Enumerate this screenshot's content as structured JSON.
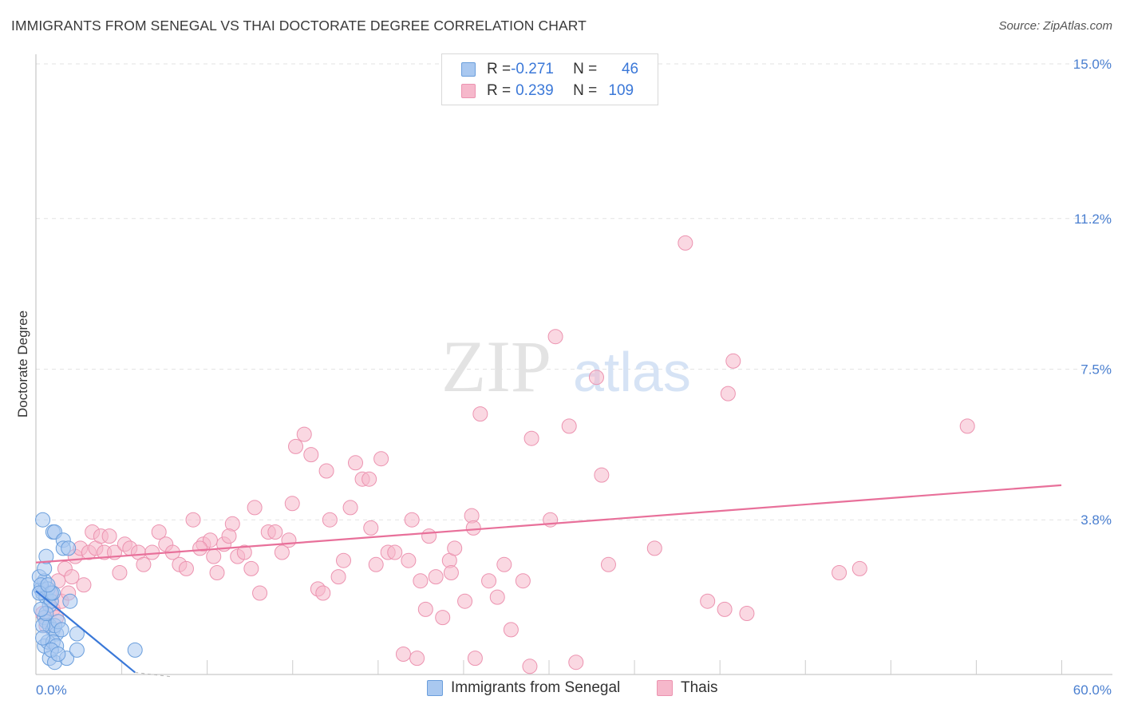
{
  "title": "IMMIGRANTS FROM SENEGAL VS THAI DOCTORATE DEGREE CORRELATION CHART",
  "source": "Source: ZipAtlas.com",
  "watermark": {
    "zip": "ZIP",
    "atlas": "atlas"
  },
  "legend": {
    "rows": [
      {
        "r_label": "R = ",
        "r_value": "-0.271",
        "n_label": "N = ",
        "n_value": "46"
      },
      {
        "r_label": "R = ",
        "r_value": "0.239",
        "n_label": "N = ",
        "n_value": "109"
      }
    ]
  },
  "bottom_legend": {
    "senegal": "Immigrants from Senegal",
    "thais": "Thais"
  },
  "colors": {
    "senegal_fill": "#a9c8f0",
    "senegal_stroke": "#6a9edc",
    "senegal_line": "#3a78d8",
    "thai_fill": "#f6b8cb",
    "thai_stroke": "#ec93b0",
    "thai_line": "#e8709a",
    "tick_text": "#4a7fd0",
    "grid": "#e3e3e3"
  },
  "chart_data": {
    "type": "scatter",
    "title": "IMMIGRANTS FROM SENEGAL VS THAI DOCTORATE DEGREE CORRELATION CHART",
    "xlabel": "",
    "ylabel": "Doctorate Degree",
    "xlim": [
      0,
      60
    ],
    "ylim": [
      0,
      15
    ],
    "x_tick_labels": [
      {
        "value": 0,
        "label": "0.0%"
      },
      {
        "value": 60,
        "label": "60.0%"
      }
    ],
    "y_tick_labels": [
      {
        "value": 3.8,
        "label": "3.8%"
      },
      {
        "value": 7.5,
        "label": "7.5%"
      },
      {
        "value": 11.2,
        "label": "11.2%"
      },
      {
        "value": 15.0,
        "label": "15.0%"
      }
    ],
    "series": [
      {
        "name": "Immigrants from Senegal",
        "r": -0.271,
        "n": 46,
        "trend": {
          "x": [
            0.0,
            5.8
          ],
          "y": [
            2.05,
            0.05
          ]
        },
        "trend_ext": {
          "x": [
            5.8,
            8.0
          ],
          "y": [
            0.05,
            -0.8
          ]
        },
        "points": [
          [
            0.3,
            2.1
          ],
          [
            0.4,
            2.0
          ],
          [
            0.5,
            2.3
          ],
          [
            0.6,
            1.9
          ],
          [
            0.7,
            2.1
          ],
          [
            0.8,
            1.7
          ],
          [
            0.9,
            1.8
          ],
          [
            1.0,
            2.0
          ],
          [
            0.2,
            2.4
          ],
          [
            0.3,
            2.2
          ],
          [
            0.5,
            2.6
          ],
          [
            0.6,
            2.9
          ],
          [
            0.4,
            3.8
          ],
          [
            1.0,
            3.5
          ],
          [
            1.1,
            3.5
          ],
          [
            1.6,
            3.3
          ],
          [
            1.6,
            3.1
          ],
          [
            1.9,
            3.1
          ],
          [
            0.5,
            1.4
          ],
          [
            0.6,
            1.3
          ],
          [
            0.8,
            1.2
          ],
          [
            1.0,
            1.1
          ],
          [
            1.2,
            1.0
          ],
          [
            1.1,
            1.2
          ],
          [
            0.5,
            0.7
          ],
          [
            0.7,
            0.8
          ],
          [
            1.0,
            0.8
          ],
          [
            1.2,
            0.7
          ],
          [
            0.8,
            0.4
          ],
          [
            1.1,
            0.3
          ],
          [
            1.8,
            0.4
          ],
          [
            0.9,
            0.6
          ],
          [
            2.4,
            1.0
          ],
          [
            2.0,
            1.8
          ],
          [
            2.4,
            0.6
          ],
          [
            5.8,
            0.6
          ],
          [
            0.4,
            1.2
          ],
          [
            0.6,
            1.5
          ],
          [
            1.3,
            1.3
          ],
          [
            0.9,
            2.0
          ],
          [
            0.2,
            2.0
          ],
          [
            0.3,
            1.6
          ],
          [
            0.7,
            2.2
          ],
          [
            1.5,
            1.1
          ],
          [
            0.4,
            0.9
          ],
          [
            1.3,
            0.5
          ]
        ]
      },
      {
        "name": "Thais",
        "r": 0.239,
        "n": 109,
        "trend": {
          "x": [
            0,
            60
          ],
          "y": [
            2.75,
            4.65
          ]
        },
        "points": [
          [
            0.4,
            1.5
          ],
          [
            0.6,
            1.2
          ],
          [
            0.8,
            2.0
          ],
          [
            1.0,
            1.6
          ],
          [
            1.2,
            1.4
          ],
          [
            1.3,
            2.3
          ],
          [
            1.5,
            1.8
          ],
          [
            1.7,
            2.6
          ],
          [
            1.9,
            2.0
          ],
          [
            2.1,
            2.4
          ],
          [
            2.3,
            2.9
          ],
          [
            2.6,
            3.1
          ],
          [
            2.8,
            2.2
          ],
          [
            3.1,
            3.0
          ],
          [
            3.3,
            3.5
          ],
          [
            3.5,
            3.1
          ],
          [
            3.8,
            3.4
          ],
          [
            4.0,
            3.0
          ],
          [
            4.3,
            3.4
          ],
          [
            4.6,
            3.0
          ],
          [
            4.9,
            2.5
          ],
          [
            5.2,
            3.2
          ],
          [
            5.5,
            3.1
          ],
          [
            6.0,
            3.0
          ],
          [
            6.3,
            2.7
          ],
          [
            6.8,
            3.0
          ],
          [
            7.2,
            3.5
          ],
          [
            7.6,
            3.2
          ],
          [
            8.0,
            3.0
          ],
          [
            8.4,
            2.7
          ],
          [
            8.8,
            2.6
          ],
          [
            9.2,
            3.8
          ],
          [
            9.8,
            3.2
          ],
          [
            10.2,
            3.3
          ],
          [
            10.6,
            2.5
          ],
          [
            11.0,
            3.2
          ],
          [
            11.5,
            3.7
          ],
          [
            11.8,
            2.9
          ],
          [
            12.2,
            3.0
          ],
          [
            12.6,
            2.6
          ],
          [
            12.8,
            4.1
          ],
          [
            13.1,
            2.0
          ],
          [
            13.6,
            3.5
          ],
          [
            14.0,
            3.5
          ],
          [
            14.4,
            3.0
          ],
          [
            14.8,
            3.3
          ],
          [
            15.0,
            4.2
          ],
          [
            15.2,
            5.6
          ],
          [
            15.7,
            5.9
          ],
          [
            16.1,
            5.4
          ],
          [
            16.5,
            2.1
          ],
          [
            16.8,
            2.0
          ],
          [
            17.0,
            5.0
          ],
          [
            17.2,
            3.8
          ],
          [
            17.7,
            2.4
          ],
          [
            18.0,
            2.8
          ],
          [
            18.4,
            4.1
          ],
          [
            18.7,
            5.2
          ],
          [
            19.1,
            4.8
          ],
          [
            19.5,
            4.8
          ],
          [
            19.9,
            2.7
          ],
          [
            20.2,
            5.3
          ],
          [
            20.6,
            3.0
          ],
          [
            21.0,
            3.0
          ],
          [
            21.8,
            2.8
          ],
          [
            22.0,
            3.8
          ],
          [
            22.5,
            2.3
          ],
          [
            22.8,
            1.6
          ],
          [
            23.0,
            3.4
          ],
          [
            23.4,
            2.4
          ],
          [
            23.8,
            1.4
          ],
          [
            24.2,
            2.8
          ],
          [
            24.5,
            3.1
          ],
          [
            25.1,
            1.8
          ],
          [
            25.5,
            3.9
          ],
          [
            25.7,
            0.4
          ],
          [
            26.0,
            6.4
          ],
          [
            26.5,
            2.3
          ],
          [
            27.0,
            1.9
          ],
          [
            27.4,
            2.7
          ],
          [
            27.8,
            1.1
          ],
          [
            28.5,
            2.3
          ],
          [
            29.0,
            5.8
          ],
          [
            30.1,
            3.8
          ],
          [
            30.4,
            8.3
          ],
          [
            31.2,
            6.1
          ],
          [
            31.6,
            0.3
          ],
          [
            32.8,
            7.3
          ],
          [
            33.1,
            4.9
          ],
          [
            33.5,
            2.7
          ],
          [
            36.2,
            3.1
          ],
          [
            39.3,
            1.8
          ],
          [
            40.5,
            6.9
          ],
          [
            40.8,
            7.7
          ],
          [
            41.6,
            1.5
          ],
          [
            47.0,
            2.5
          ],
          [
            48.2,
            2.6
          ],
          [
            54.5,
            6.1
          ],
          [
            38.0,
            10.6
          ],
          [
            40.3,
            1.6
          ],
          [
            28.9,
            0.2
          ],
          [
            22.3,
            0.4
          ],
          [
            21.5,
            0.5
          ],
          [
            10.4,
            2.9
          ],
          [
            11.3,
            3.4
          ],
          [
            9.6,
            3.1
          ],
          [
            19.6,
            3.6
          ],
          [
            24.3,
            2.5
          ],
          [
            25.6,
            3.6
          ]
        ]
      }
    ]
  }
}
